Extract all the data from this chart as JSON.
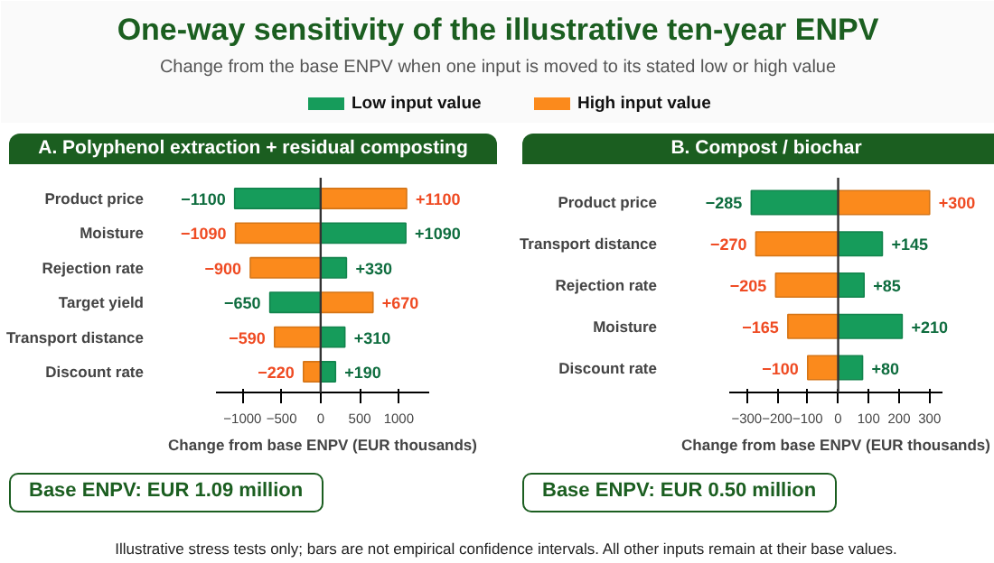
{
  "chart_data": [
    {
      "type": "bar",
      "orientation": "horizontal",
      "title": "A. Polyphenol extraction + residual composting",
      "xlabel": "Change from base ENPV (EUR thousands)",
      "annotations": [
        "One-way sensitivity of the illustrative ten-year ENPV",
        "Change from the base ENPV when one input is moved to its stated low or high value",
        "Base ENPV: EUR 1.09 million"
      ],
      "categories": [
        "Product price",
        "Moisture",
        "Rejection rate",
        "Target yield",
        "Transport distance",
        "Discount rate"
      ],
      "series": [
        {
          "name": "Low input value",
          "color": "#169c5b",
          "values": [
            -1100,
            1090,
            330,
            -650,
            310,
            190
          ],
          "value_labels": [
            "−1100",
            "+1090",
            "+330",
            "−650",
            "+310",
            "+190"
          ]
        },
        {
          "name": "High input value",
          "color": "#fb8a1c",
          "values": [
            1100,
            -1090,
            -900,
            670,
            -590,
            -220
          ],
          "value_labels": [
            "+1100",
            "−1090",
            "−900",
            "+670",
            "−590",
            "−220"
          ]
        }
      ],
      "xlim": [
        -1350,
        1400
      ],
      "xticks": [
        -1000,
        -500,
        0,
        500,
        1000
      ],
      "ref_lines": [
        {
          "axis": "x",
          "value": 0
        }
      ],
      "legend": "top",
      "stacked": true
    },
    {
      "type": "bar",
      "orientation": "horizontal",
      "title": "B. Compost / biochar",
      "xlabel": "Change from base ENPV (EUR thousands)",
      "annotations": [
        "Base ENPV: EUR 0.50 million",
        "Illustrative stress tests only; bars are not empirical confidence intervals. All other inputs remain at their base values."
      ],
      "categories": [
        "Product price",
        "Transport distance",
        "Rejection rate",
        "Moisture",
        "Discount rate"
      ],
      "series": [
        {
          "color": "#169c5b",
          "values": [
            -285,
            145,
            85,
            210,
            80
          ],
          "value_labels": [
            "−285",
            "+145",
            "+85",
            "+210",
            "+80"
          ]
        },
        {
          "color": "#fb8a1c",
          "values": [
            300,
            -270,
            -205,
            -165,
            -100
          ],
          "value_labels": [
            "+300",
            "−270",
            "−205",
            "−165",
            "−100"
          ]
        }
      ],
      "xlim": [
        -360,
        345
      ],
      "xticks": [
        -300,
        -200,
        -100,
        0,
        100,
        200,
        300
      ],
      "ref_lines": [
        {
          "axis": "x",
          "value": 0
        }
      ],
      "stacked": true
    }
  ]
}
